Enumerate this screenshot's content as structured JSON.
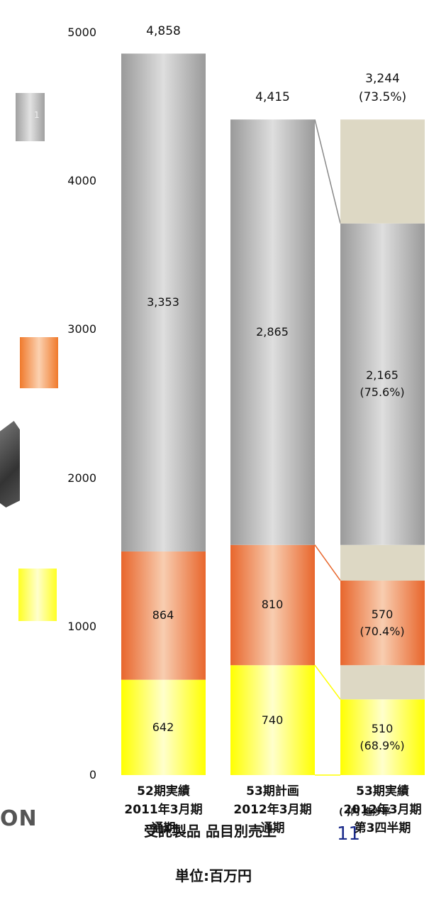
{
  "chart_data": {
    "type": "bar",
    "stacked": true,
    "ylim": [
      0,
      5000
    ],
    "yticks": [
      "0",
      "1000",
      "2000",
      "3000",
      "4000",
      "5000"
    ],
    "categories": [
      [
        "52期実績",
        "2011年3月期",
        "通期"
      ],
      [
        "53期計画",
        "2012年3月期",
        "通期"
      ],
      [
        "53期実績",
        "2012年3月期",
        "第3四半期"
      ]
    ],
    "series": [
      {
        "values": [
          642,
          740,
          510
        ],
        "labels": [
          "642",
          "740",
          "510\n(68.9%)"
        ],
        "color_dark": "#ffff00",
        "color_light": "#ffffcc"
      },
      {
        "values": [
          864,
          810,
          570
        ],
        "labels": [
          "864",
          "810",
          "570\n(70.4%)"
        ],
        "color_dark": "#e8662c",
        "color_light": "#f8cdb0"
      },
      {
        "values": [
          3353,
          2865,
          2165
        ],
        "labels": [
          "3,353",
          "2,865",
          "2,165\n(75.6%)"
        ],
        "color_dark": "#9a9a9a",
        "color_light": "#dedede"
      }
    ],
    "totals": [
      "4,858",
      "4,415",
      "3,244\n(73.5%)"
    ],
    "total_values": [
      4858,
      4415,
      3244
    ],
    "remaining_color": "#ddd8c4",
    "connector_colors": [
      "#888888",
      "#e8662c",
      "#ffff00"
    ]
  },
  "legend": {
    "label_1": "1",
    "colors": [
      "#cfcfcf",
      "#f28a3c",
      "#ffff44"
    ]
  },
  "footer": {
    "title": "受託製品  品目別売上",
    "unit": "単位:百万円",
    "note": "(   )内 進捗率",
    "page": "11"
  },
  "logo": {
    "text": "ON"
  }
}
